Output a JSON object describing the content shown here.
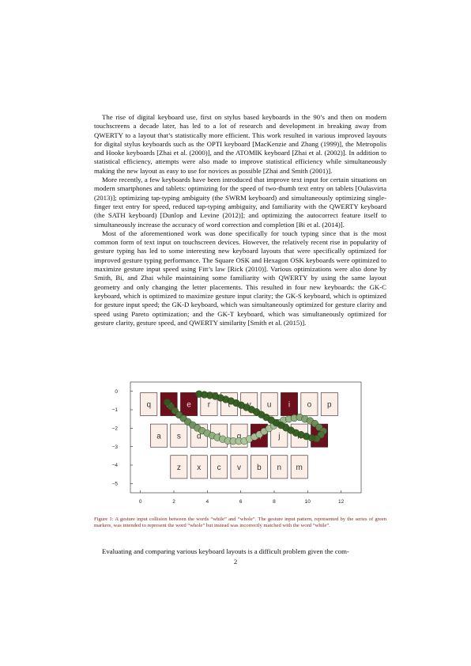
{
  "paragraphs": [
    "The rise of digital keyboard use, first on stylus based keyboards in the 90’s and then on modern touchscreens a decade later, has led to a lot of research and development in breaking away from QWERTY to a layout that’s statistically more efficient. This work resulted in various improved layouts for digital stylus keyboards such as the OPTI keyboard [MacKenzie and Zhang (1999)], the Metropolis and Hooke keyboards [Zhai et al. (2000)], and the ATOMIK keyboard [Zhai et al. (2002)]. In addition to statistical efficiency, attempts were also made to improve statistical efficiency while simultaneously making the new layout as easy to use for novices as possible [Zhai and Smith (2001)].",
    "More recently, a few keyboards have been introduced that improve text input for certain situations on modern smartphones and tablets: optimizing for the speed of two-thumb text entry on tablets [Oulasvirta (2013)]; optimizing tap-typing ambiguity (the SWRM keyboard) and simultaneously optimizing single-finger text entry for speed, reduced tap-typing ambiguity, and familiarity with the QWERTY keyboard (the SATH keyboard) [Dunlop and Levine (2012)]; and optimizing the autocorrect feature itself to simultaneously increase the accuracy of word correction and completion [Bi et al. (2014)].",
    "Most of the aforementioned work was done specifically for touch typing since that is the most common form of text input on touchscreen devices. However, the relatively recent rise in popularity of gesture typing has led to some interesting new keyboard layouts that were specifically optimized for improved gesture typing performance. The Square OSK and Hexagon OSK keyboards were optimized to maximize gesture input speed using Fitt’s law [Rick (2010)]. Various optimizations were also done by Smith, Bi, and Zhai while maintaining some familiarity with QWERTY by using the same layout geometry and only changing the letter placements. This resulted in four new keyboards: the GK-C keyboard, which is optimized to maximize gesture input clarity; the GK-S keyboard, which is optimized for gesture input speed; the GK-D keyboard, which was simultaneously optimized for gesture clarity and speed using Pareto optimization; and the GK-T keyboard, which was simultaneously optimized for gesture clarity, gesture speed, and QWERTY similarity [Smith et al. (2015)]."
  ],
  "caption": "Figure 1: A gesture input collision between the words “while” and “whole”. The gesture input pattern, represented by the series of green markers, was intended to represent the word “whole” but instead was incorrectly matched with the word “while”.",
  "bottom_text": "Evaluating and comparing various keyboard layouts is a difficult problem given the com-",
  "page_number": "2",
  "chart_data": {
    "type": "scatter",
    "title": "",
    "xlabel": "",
    "ylabel": "",
    "xlim": [
      -0.6,
      13.2
    ],
    "ylim": [
      -5.5,
      0.5
    ],
    "xticks": [
      "0",
      "2",
      "4",
      "6",
      "8",
      "10",
      "12"
    ],
    "yticks": [
      "0",
      "−1",
      "−2",
      "−3",
      "−4",
      "−5"
    ],
    "grid": false,
    "colors": {
      "key_fill": "#fbeee6",
      "key_highlight": "#6e0f1e",
      "key_border": "#3a1a1a",
      "marker_dark": "#2e5a1c",
      "marker_light": "#a9c79a"
    },
    "keys": [
      {
        "label": "q",
        "x": 0.5,
        "y": -0.7,
        "highlighted": false
      },
      {
        "label": "w",
        "x": 1.7,
        "y": -0.7,
        "highlighted": true
      },
      {
        "label": "e",
        "x": 2.9,
        "y": -0.7,
        "highlighted": true
      },
      {
        "label": "r",
        "x": 4.1,
        "y": -0.7,
        "highlighted": false
      },
      {
        "label": "t",
        "x": 5.3,
        "y": -0.7,
        "highlighted": false
      },
      {
        "label": "y",
        "x": 6.5,
        "y": -0.7,
        "highlighted": false
      },
      {
        "label": "u",
        "x": 7.7,
        "y": -0.7,
        "highlighted": false
      },
      {
        "label": "i",
        "x": 8.9,
        "y": -0.7,
        "highlighted": true
      },
      {
        "label": "o",
        "x": 10.1,
        "y": -0.7,
        "highlighted": false
      },
      {
        "label": "p",
        "x": 11.3,
        "y": -0.7,
        "highlighted": false
      },
      {
        "label": "a",
        "x": 1.1,
        "y": -2.4,
        "highlighted": false
      },
      {
        "label": "s",
        "x": 2.3,
        "y": -2.4,
        "highlighted": false
      },
      {
        "label": "d",
        "x": 3.5,
        "y": -2.4,
        "highlighted": false
      },
      {
        "label": "f",
        "x": 4.7,
        "y": -2.4,
        "highlighted": false
      },
      {
        "label": "g",
        "x": 5.9,
        "y": -2.4,
        "highlighted": false
      },
      {
        "label": "h",
        "x": 7.1,
        "y": -2.4,
        "highlighted": true
      },
      {
        "label": "j",
        "x": 8.3,
        "y": -2.4,
        "highlighted": false
      },
      {
        "label": "k",
        "x": 9.5,
        "y": -2.4,
        "highlighted": false
      },
      {
        "label": "l",
        "x": 10.7,
        "y": -2.4,
        "highlighted": true
      },
      {
        "label": "z",
        "x": 2.3,
        "y": -4.1,
        "highlighted": false
      },
      {
        "label": "x",
        "x": 3.5,
        "y": -4.1,
        "highlighted": false
      },
      {
        "label": "c",
        "x": 4.7,
        "y": -4.1,
        "highlighted": false
      },
      {
        "label": "v",
        "x": 5.9,
        "y": -4.1,
        "highlighted": false
      },
      {
        "label": "b",
        "x": 7.1,
        "y": -4.1,
        "highlighted": false
      },
      {
        "label": "n",
        "x": 8.3,
        "y": -4.1,
        "highlighted": false
      },
      {
        "label": "m",
        "x": 9.5,
        "y": -4.1,
        "highlighted": false
      }
    ],
    "gesture_path": [
      [
        1.6,
        -0.6
      ],
      [
        2.2,
        -1.2
      ],
      [
        2.9,
        -1.7
      ],
      [
        3.6,
        -2.1
      ],
      [
        4.4,
        -2.45
      ],
      [
        5.3,
        -2.7
      ],
      [
        6.2,
        -2.7
      ],
      [
        7.0,
        -2.4
      ],
      [
        7.8,
        -1.95
      ],
      [
        8.6,
        -1.55
      ],
      [
        9.5,
        -1.4
      ],
      [
        10.3,
        -1.65
      ],
      [
        11.0,
        -2.2
      ],
      [
        10.5,
        -2.6
      ],
      [
        9.4,
        -2.3
      ],
      [
        8.1,
        -1.7
      ],
      [
        6.8,
        -1.05
      ],
      [
        5.5,
        -0.55
      ],
      [
        4.4,
        -0.25
      ],
      [
        3.5,
        -0.15
      ]
    ],
    "gesture_markers": 58
  }
}
